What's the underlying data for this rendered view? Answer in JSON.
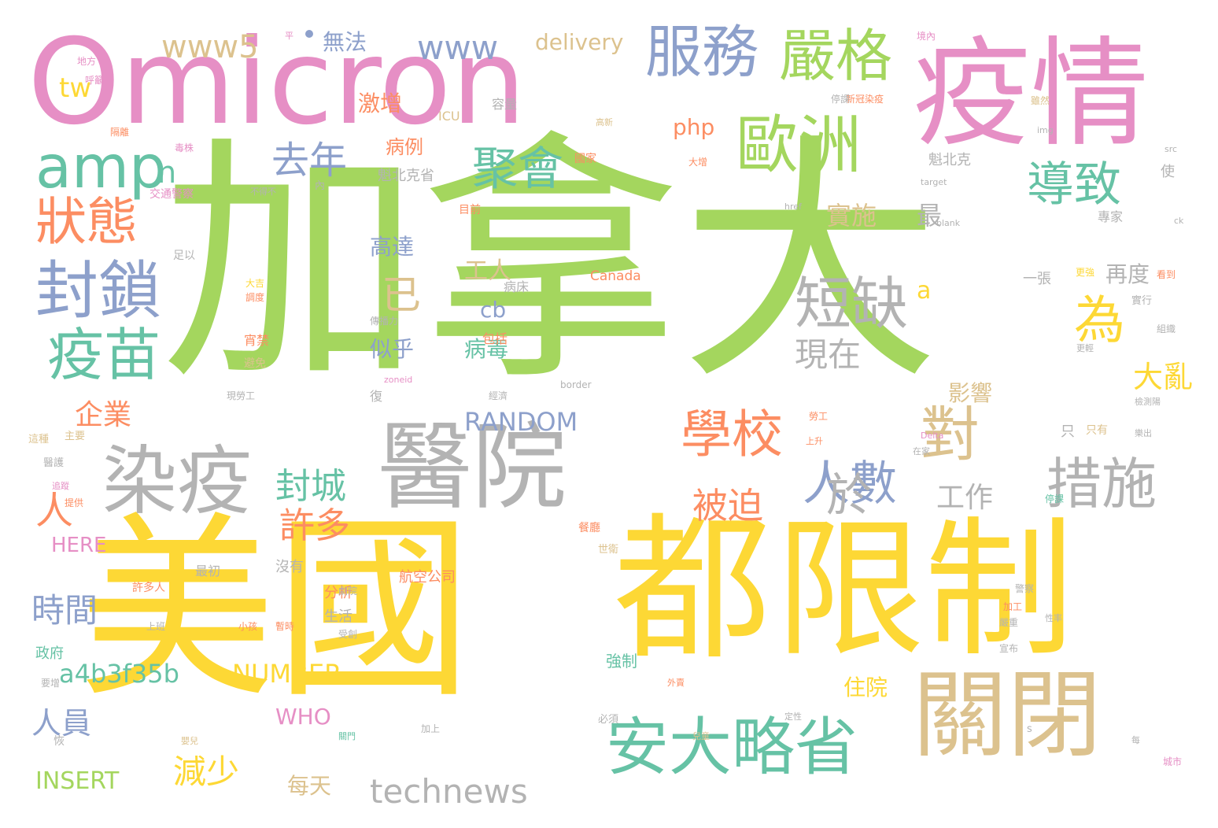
{
  "palette": {
    "green": "#a4d65e",
    "yellow": "#fdd835",
    "pink": "#e68fc5",
    "tan": "#dcc28e",
    "teal": "#66c2a5",
    "gray": "#b3b3b3",
    "orange": "#fc8d62",
    "blue": "#8da0cb"
  },
  "words": [
    "加拿大",
    "美國",
    "都",
    "限制",
    "Omicron",
    "疫情",
    "關閉",
    "醫院",
    "歐洲",
    "染疫",
    "服務",
    "嚴格",
    "安大略省",
    "封鎖",
    "疫苗",
    "狀態",
    "amp",
    "短缺",
    "學校",
    "對",
    "措施",
    "導致",
    "聚會",
    "人數",
    "為",
    "於",
    "去年",
    "現在",
    "technews",
    "www",
    "www5",
    "已",
    "人",
    "封城",
    "被迫",
    "許多",
    "時間",
    "人員",
    "工作",
    "減少",
    "delivery",
    "php",
    "企業",
    "RANDOM",
    "實施",
    "最",
    "a4b3f35b",
    "NUMBER",
    "INSERT",
    "HERE",
    "WHO",
    "大亂",
    "cb",
    "再度",
    "工人",
    "高達",
    "似乎",
    "病例",
    "激增",
    "病毒",
    "影響",
    "無法",
    "每天",
    "住院",
    "tw",
    "n",
    "a",
    "生活",
    "分析",
    "強制",
    "航空公司",
    "沒有",
    "政府",
    "包括",
    "Canada",
    "ICU",
    "容量",
    "目前",
    "魁北克",
    "魁北克省",
    "國家",
    "使",
    "專家",
    "病床",
    "一張",
    "實行",
    "只",
    "只有",
    "宵禁",
    "避免",
    "最初",
    "許多人",
    "上班",
    "小孩",
    "暫時",
    "餐廳",
    "受創",
    "經濟",
    "劇院",
    "世衛",
    "嚴重",
    "加工",
    "宣布",
    "警察",
    "新冠染疫",
    "停課",
    "雖然",
    "地方",
    "呼籲",
    "隔離",
    "毒株",
    "交通警察",
    "不得不",
    "足以",
    "大吉",
    "調度",
    "傳播力",
    "zoneid",
    "border",
    "復",
    "現勞工",
    "blank",
    "target",
    "href",
    "img",
    "src",
    "ck",
    "檢測陽",
    "樂出",
    "Delta",
    "在家",
    "上升",
    "勞工",
    "定性",
    "外賣",
    "兒童",
    "必須",
    "加上",
    "s",
    "城市",
    "每",
    "恢",
    "嬰兒",
    "關門",
    "性率",
    "醫護",
    "要增",
    "追蹤",
    "提供",
    "主要",
    "這種",
    "內",
    "境內",
    "平",
    "高新",
    "大增",
    "停課",
    "更強",
    "看到",
    "組織",
    "更輕",
    "因為",
    "不比",
    "不致",
    "安樂死",
    "加劇長",
    "居宰",
    "超出",
    "寬鬆",
    "迫切",
    "倍數",
    "兩倍",
    "多行",
    "無人",
    "不過",
    "其中",
    "範圍",
    "確診",
    "全面",
    "輕症",
    "專業",
    "遲早",
    "工業",
    "大規模",
    "學生",
    "假期",
    "嚴峻",
    "工作室",
    "輕度",
    "阻止",
    "大量",
    "人手",
    "減少",
    "感染",
    "冬季",
    "方面",
    "未接",
    "年底",
    "航班",
    "取消",
    "更多",
    "接種",
    "疫苗接",
    "全國",
    "研究",
    "當局",
    "表示",
    "部分",
    "持續",
    "擔心",
    "醫生",
    "護理",
    "緊張",
    "全國各",
    "醫療",
    "系統",
    "壓力",
    "病患",
    "重症",
    "死亡"
  ],
  "layout_note_visible": ""
}
